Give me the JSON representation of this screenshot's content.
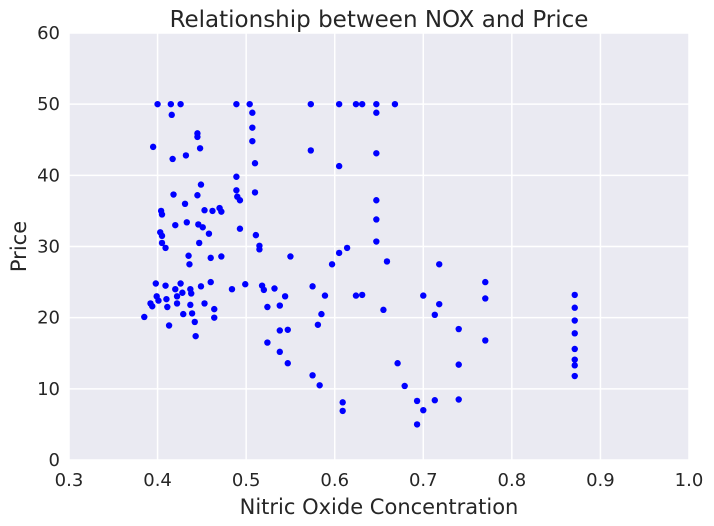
{
  "chart_data": {
    "type": "scatter",
    "title": "Relationship between NOX and Price",
    "xlabel": "Nitric Oxide Concentration",
    "ylabel": "Price",
    "xlim": [
      0.3,
      1.0
    ],
    "ylim": [
      0,
      60
    ],
    "x_ticks": [
      0.3,
      0.4,
      0.5,
      0.6,
      0.7,
      0.8,
      0.9,
      1.0
    ],
    "x_tick_labels": [
      "0.3",
      "0.4",
      "0.5",
      "0.6",
      "0.7",
      "0.8",
      "0.9",
      "1.0"
    ],
    "y_ticks": [
      0,
      10,
      20,
      30,
      40,
      50,
      60
    ],
    "y_tick_labels": [
      "0",
      "10",
      "20",
      "30",
      "40",
      "50",
      "60"
    ],
    "grid": true,
    "background_color": "#EAEAF2",
    "grid_color": "#FFFFFF",
    "marker_color": "#0000FF",
    "points": [
      [
        0.385,
        20.1
      ],
      [
        0.392,
        22.0
      ],
      [
        0.394,
        21.6
      ],
      [
        0.395,
        44.0
      ],
      [
        0.398,
        24.8
      ],
      [
        0.399,
        23.0
      ],
      [
        0.4,
        50.0
      ],
      [
        0.401,
        22.4
      ],
      [
        0.403,
        32.0
      ],
      [
        0.404,
        35.0
      ],
      [
        0.405,
        34.5
      ],
      [
        0.405,
        31.5
      ],
      [
        0.405,
        30.5
      ],
      [
        0.409,
        29.8
      ],
      [
        0.409,
        24.5
      ],
      [
        0.41,
        22.6
      ],
      [
        0.411,
        21.5
      ],
      [
        0.413,
        18.9
      ],
      [
        0.415,
        50.0
      ],
      [
        0.416,
        48.5
      ],
      [
        0.417,
        42.3
      ],
      [
        0.418,
        37.3
      ],
      [
        0.42,
        33.0
      ],
      [
        0.42,
        24.0
      ],
      [
        0.422,
        23.0
      ],
      [
        0.422,
        22.0
      ],
      [
        0.426,
        50.0
      ],
      [
        0.426,
        24.8
      ],
      [
        0.428,
        23.5
      ],
      [
        0.429,
        20.5
      ],
      [
        0.431,
        36.0
      ],
      [
        0.432,
        42.8
      ],
      [
        0.433,
        33.4
      ],
      [
        0.435,
        28.7
      ],
      [
        0.436,
        27.5
      ],
      [
        0.437,
        24.0
      ],
      [
        0.437,
        21.8
      ],
      [
        0.438,
        23.4
      ],
      [
        0.439,
        20.6
      ],
      [
        0.442,
        19.4
      ],
      [
        0.443,
        17.4
      ],
      [
        0.445,
        45.9
      ],
      [
        0.445,
        45.4
      ],
      [
        0.445,
        37.2
      ],
      [
        0.446,
        33.1
      ],
      [
        0.447,
        30.5
      ],
      [
        0.448,
        43.8
      ],
      [
        0.449,
        38.7
      ],
      [
        0.449,
        24.4
      ],
      [
        0.451,
        32.7
      ],
      [
        0.453,
        35.1
      ],
      [
        0.453,
        22.0
      ],
      [
        0.458,
        31.8
      ],
      [
        0.46,
        28.4
      ],
      [
        0.46,
        25.0
      ],
      [
        0.462,
        35.0
      ],
      [
        0.464,
        21.2
      ],
      [
        0.464,
        20.0
      ],
      [
        0.47,
        35.4
      ],
      [
        0.472,
        34.9
      ],
      [
        0.472,
        28.6
      ],
      [
        0.484,
        24.0
      ],
      [
        0.489,
        50.0
      ],
      [
        0.489,
        39.8
      ],
      [
        0.489,
        37.9
      ],
      [
        0.49,
        37.0
      ],
      [
        0.493,
        36.5
      ],
      [
        0.493,
        32.5
      ],
      [
        0.499,
        24.7
      ],
      [
        0.504,
        50.0
      ],
      [
        0.507,
        48.8
      ],
      [
        0.507,
        46.7
      ],
      [
        0.507,
        44.8
      ],
      [
        0.51,
        41.7
      ],
      [
        0.51,
        37.6
      ],
      [
        0.511,
        31.6
      ],
      [
        0.515,
        30.1
      ],
      [
        0.515,
        29.6
      ],
      [
        0.518,
        24.5
      ],
      [
        0.52,
        23.9
      ],
      [
        0.524,
        21.5
      ],
      [
        0.524,
        16.5
      ],
      [
        0.532,
        24.1
      ],
      [
        0.538,
        21.7
      ],
      [
        0.538,
        18.2
      ],
      [
        0.538,
        15.2
      ],
      [
        0.544,
        23.0
      ],
      [
        0.547,
        18.3
      ],
      [
        0.547,
        13.6
      ],
      [
        0.55,
        28.6
      ],
      [
        0.573,
        50.0
      ],
      [
        0.573,
        43.5
      ],
      [
        0.575,
        24.4
      ],
      [
        0.575,
        11.9
      ],
      [
        0.581,
        19.0
      ],
      [
        0.583,
        10.5
      ],
      [
        0.585,
        20.5
      ],
      [
        0.589,
        23.1
      ],
      [
        0.597,
        27.5
      ],
      [
        0.605,
        50.0
      ],
      [
        0.605,
        41.3
      ],
      [
        0.605,
        29.1
      ],
      [
        0.609,
        8.1
      ],
      [
        0.609,
        6.9
      ],
      [
        0.614,
        29.8
      ],
      [
        0.624,
        50.0
      ],
      [
        0.624,
        23.1
      ],
      [
        0.631,
        50.0
      ],
      [
        0.631,
        23.2
      ],
      [
        0.647,
        50.0
      ],
      [
        0.647,
        48.8
      ],
      [
        0.647,
        43.1
      ],
      [
        0.647,
        36.5
      ],
      [
        0.647,
        33.8
      ],
      [
        0.647,
        30.7
      ],
      [
        0.655,
        21.1
      ],
      [
        0.659,
        27.9
      ],
      [
        0.668,
        50.0
      ],
      [
        0.671,
        13.6
      ],
      [
        0.679,
        10.4
      ],
      [
        0.693,
        8.3
      ],
      [
        0.693,
        5.0
      ],
      [
        0.7,
        23.1
      ],
      [
        0.7,
        7.0
      ],
      [
        0.713,
        20.4
      ],
      [
        0.713,
        8.4
      ],
      [
        0.718,
        27.5
      ],
      [
        0.718,
        21.9
      ],
      [
        0.74,
        18.4
      ],
      [
        0.74,
        13.4
      ],
      [
        0.74,
        8.5
      ],
      [
        0.77,
        25.0
      ],
      [
        0.77,
        22.7
      ],
      [
        0.77,
        16.8
      ],
      [
        0.871,
        23.2
      ],
      [
        0.871,
        21.4
      ],
      [
        0.871,
        19.6
      ],
      [
        0.871,
        17.8
      ],
      [
        0.871,
        15.6
      ],
      [
        0.871,
        14.1
      ],
      [
        0.871,
        13.3
      ],
      [
        0.871,
        11.8
      ]
    ]
  }
}
